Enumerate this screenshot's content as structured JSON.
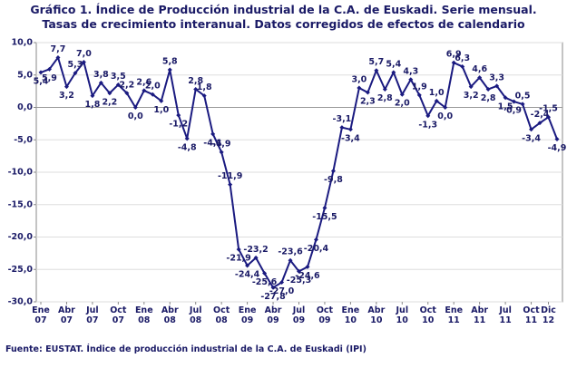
{
  "title": "Gráfico 1. Índice de Producción industrial de la C.A. de Euskadi. Serie mensual. Tasas de crecimiento interanual. Datos corregidos de efectos de calendario",
  "source": "Fuente: EUSTAT. Índice de producción industrial de la C.A. de Euskadi (IPI)",
  "chart_data": {
    "type": "line",
    "categories": [
      "Ene 07",
      null,
      null,
      "Abr 07",
      null,
      null,
      "Jul 07",
      null,
      null,
      "Oct 07",
      null,
      null,
      "Ene 08",
      null,
      null,
      "Abr 08",
      null,
      null,
      "Jul 08",
      null,
      null,
      "Oct 08",
      null,
      null,
      "Ene 09",
      null,
      null,
      "Abr 09",
      null,
      null,
      "Jul 09",
      null,
      null,
      "Oct 09",
      null,
      null,
      "Ene 10",
      null,
      null,
      "Abr 10",
      null,
      null,
      "Jul 10",
      null,
      null,
      "Oct 10",
      null,
      null,
      "Ene 11",
      null,
      null,
      "Abr 11",
      null,
      null,
      "Jul 11",
      null,
      null,
      "Oct 11",
      null,
      "Dic 12",
      null
    ],
    "series": [
      {
        "name": null,
        "color": "#1a1a80",
        "values": [
          5.4,
          5.9,
          7.7,
          3.2,
          5.3,
          7.0,
          1.8,
          3.8,
          2.2,
          3.5,
          2.2,
          0.0,
          2.6,
          2.0,
          1.0,
          5.8,
          -1.2,
          -4.8,
          2.8,
          1.8,
          -4.1,
          -6.9,
          -11.9,
          -21.9,
          -24.4,
          -23.2,
          -25.6,
          -27.8,
          -27.0,
          -23.6,
          -25.3,
          -24.6,
          -20.4,
          -15.5,
          -9.8,
          -3.1,
          -3.4,
          3.0,
          2.3,
          5.7,
          2.8,
          5.4,
          2.0,
          4.3,
          1.9,
          -1.3,
          1.0,
          0.0,
          6.9,
          6.3,
          3.2,
          4.6,
          2.8,
          3.3,
          1.5,
          0.9,
          0.5,
          -3.4,
          -2.4,
          -1.5,
          -4.9
        ],
        "value_labels": [
          "5,4",
          "5,9",
          "7,7",
          "3,2",
          "5,3",
          "7,0",
          "1,8",
          "3,8",
          "2,2",
          "3,5",
          "2,2",
          "0,0",
          "2,6",
          "2,0",
          "1,0",
          "5,8",
          "-1,2",
          "-4,8",
          "2,8",
          "1,8",
          "-4,1",
          "-6,9",
          "-11,9",
          "-21,9",
          "-24,4",
          "-23,2",
          "-25,6",
          "-27,8",
          "-27,0",
          "-23,6",
          "-25,3",
          "-24,6",
          "-20,4",
          "-15,5",
          "-9,8",
          "-3,1",
          "-3,4",
          "3,0",
          "2,3",
          "5,7",
          "2,8",
          "5,4",
          "2,0",
          "4,3",
          "1,9",
          "-1,3",
          "1,0",
          "0,0",
          "6,9",
          "6,3",
          "3,2",
          "4,6",
          "2,8",
          "3,3",
          "1,5",
          "0,9",
          "0,5",
          "-3,4",
          "-2,4",
          "-1,5",
          "-4,9"
        ]
      }
    ],
    "ylim": [
      -30,
      10
    ],
    "yticks": [
      {
        "value": -30,
        "label": "-30,0"
      },
      {
        "value": -25,
        "label": "-25,0"
      },
      {
        "value": -20,
        "label": "-20,0"
      },
      {
        "value": -15,
        "label": "-15,0"
      },
      {
        "value": -10,
        "label": "-10,0"
      },
      {
        "value": -5,
        "label": "-5,0"
      },
      {
        "value": 0,
        "label": "0,0"
      },
      {
        "value": 5,
        "label": "5,0"
      },
      {
        "value": 10,
        "label": "10,0"
      }
    ],
    "grid": true
  }
}
